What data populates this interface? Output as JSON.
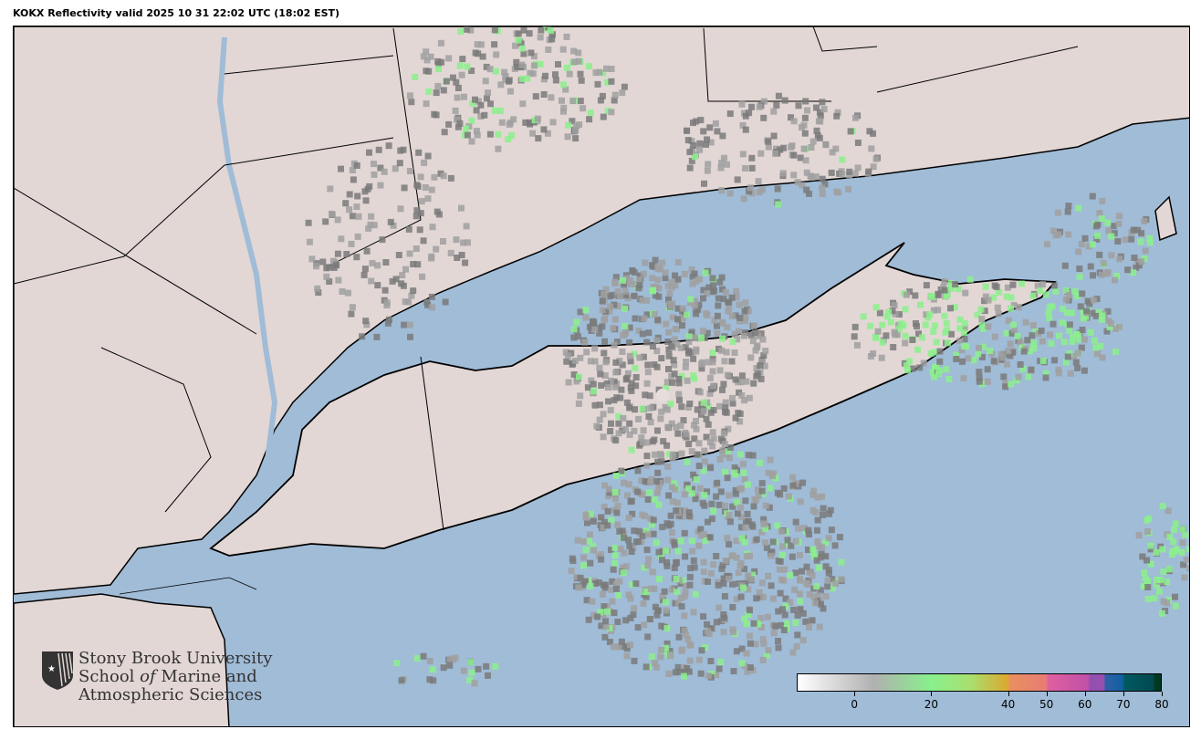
{
  "title": "KOKX Reflectivity valid 2025 10 31 22:02 UTC (18:02 EST)",
  "logo": {
    "line1": "Stony Brook University",
    "line2a": "School ",
    "line2b": "of",
    "line2c": " Marine and",
    "line3": "Atmospheric Sciences"
  },
  "colors": {
    "ocean": "#a0bcd7",
    "land": "#e2d7d5",
    "border": "#000000",
    "radar_gray": "#8a8a8a",
    "radar_green": "#8cf08c"
  },
  "colorbar": {
    "min": -15,
    "max": 80,
    "ticks": [
      {
        "value": 0,
        "label": "0"
      },
      {
        "value": 20,
        "label": "20"
      },
      {
        "value": 40,
        "label": "40"
      },
      {
        "value": 50,
        "label": "50"
      },
      {
        "value": 60,
        "label": "60"
      },
      {
        "value": 70,
        "label": "70"
      },
      {
        "value": 80,
        "label": "80"
      }
    ],
    "stops": [
      [
        -15,
        "#ffffff"
      ],
      [
        5,
        "#b0b0b0"
      ],
      [
        20,
        "#88f08c"
      ],
      [
        30,
        "#a8e070"
      ],
      [
        40,
        "#dca830"
      ],
      [
        40.5,
        "#e89060"
      ],
      [
        50,
        "#e87c74"
      ],
      [
        50.5,
        "#e060a0"
      ],
      [
        61,
        "#c050a8"
      ],
      [
        61.5,
        "#9050b0"
      ],
      [
        65,
        "#9a50b0"
      ],
      [
        65.5,
        "#3060a8"
      ],
      [
        70,
        "#1060a0"
      ],
      [
        70.5,
        "#005a60"
      ],
      [
        78,
        "#004a50"
      ],
      [
        78.5,
        "#003820"
      ],
      [
        80,
        "#003820"
      ]
    ]
  }
}
